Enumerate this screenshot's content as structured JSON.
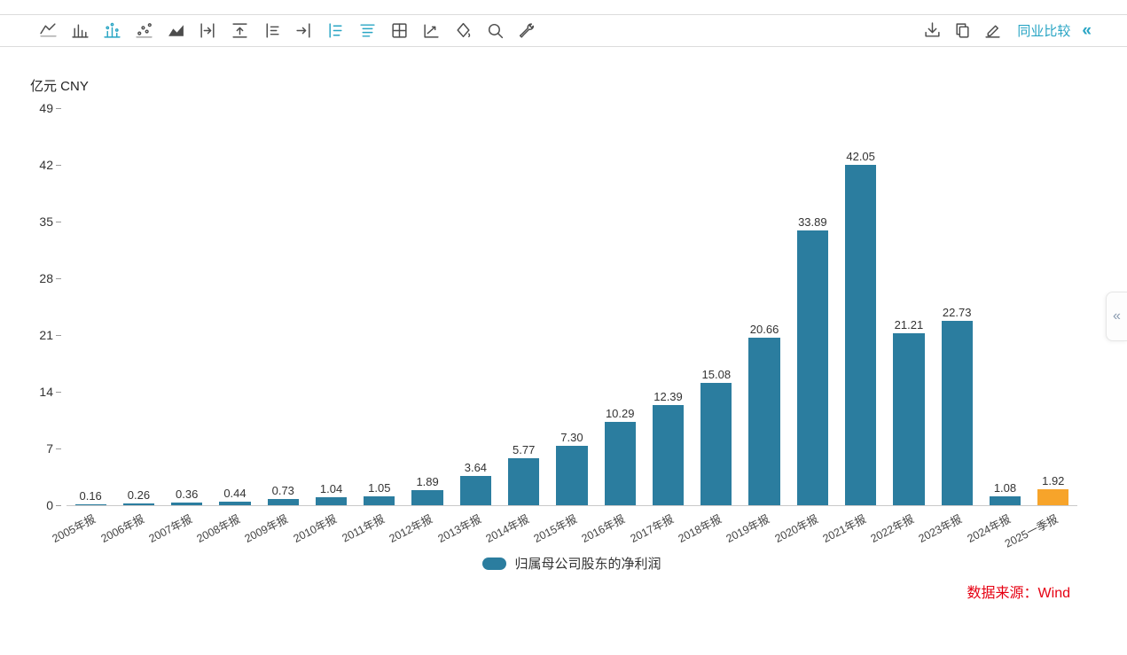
{
  "toolbar": {
    "left_icons": [
      {
        "name": "line-chart-icon",
        "active": false
      },
      {
        "name": "histogram-icon",
        "active": false
      },
      {
        "name": "column-dot-chart-icon",
        "active": true
      },
      {
        "name": "scatter-chart-icon",
        "active": false
      },
      {
        "name": "area-chart-icon",
        "active": false
      },
      {
        "name": "bar-right-icon",
        "active": false
      },
      {
        "name": "bar-top-icon",
        "active": false
      },
      {
        "name": "axis-labels-icon",
        "active": false
      },
      {
        "name": "arrow-to-bar-icon",
        "active": false
      },
      {
        "name": "list-left-icon",
        "active": true
      },
      {
        "name": "list-top-icon",
        "active": true
      },
      {
        "name": "grid-icon",
        "active": false
      },
      {
        "name": "trend-line-icon",
        "active": false
      },
      {
        "name": "fill-tool-icon",
        "active": false
      },
      {
        "name": "zoom-search-icon",
        "active": false
      },
      {
        "name": "settings-wrench-icon",
        "active": false
      }
    ],
    "right_icons": [
      {
        "name": "download-icon"
      },
      {
        "name": "copy-icon"
      },
      {
        "name": "edit-icon"
      }
    ],
    "peer_compare_label": "同业比较",
    "collapse_label": "«"
  },
  "chart_data": {
    "type": "bar",
    "unit_label": "亿元 CNY",
    "categories": [
      "2005年报",
      "2006年报",
      "2007年报",
      "2008年报",
      "2009年报",
      "2010年报",
      "2011年报",
      "2012年报",
      "2013年报",
      "2014年报",
      "2015年报",
      "2016年报",
      "2017年报",
      "2018年报",
      "2019年报",
      "2020年报",
      "2021年报",
      "2022年报",
      "2023年报",
      "2024年报",
      "2025一季报"
    ],
    "values": [
      0.16,
      0.26,
      0.36,
      0.44,
      0.73,
      1.04,
      1.05,
      1.89,
      3.64,
      5.77,
      7.3,
      10.29,
      12.39,
      15.08,
      20.66,
      33.89,
      42.05,
      21.21,
      22.73,
      1.08,
      1.92
    ],
    "yticks": [
      49,
      42,
      35,
      28,
      21,
      14,
      7,
      0
    ],
    "ylim": [
      0,
      49
    ],
    "grid": false,
    "legend": "归属母公司股东的净利润",
    "legend_position": "bottom",
    "colors": {
      "bar": "#2b7d9f",
      "highlight": "#f7a42a"
    }
  },
  "footer": {
    "source_label": "数据来源：Wind"
  },
  "side": {
    "collapse_tab": "«"
  }
}
